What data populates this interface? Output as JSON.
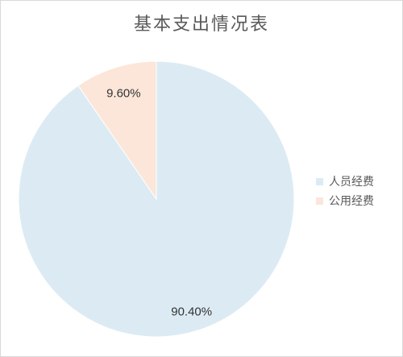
{
  "chart_data": {
    "type": "pie",
    "title": "基本支出情况表",
    "slices": [
      {
        "label": "人员经费",
        "value": 90.4,
        "display": "90.40%",
        "color": "#dcebf3"
      },
      {
        "label": "公用经费",
        "value": 9.6,
        "display": "9.60%",
        "color": "#fbe6d9"
      }
    ],
    "legend_position": "right",
    "start_angle_deg": 0,
    "direction": "clockwise"
  }
}
